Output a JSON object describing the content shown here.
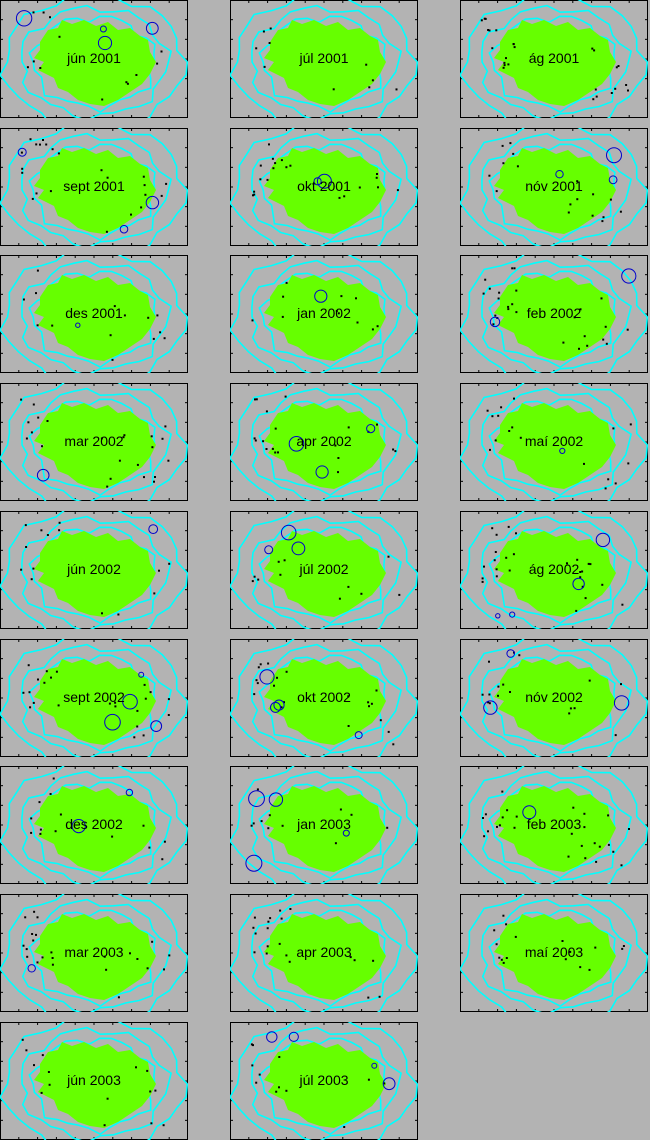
{
  "colors": {
    "background": "#b3b3b3",
    "land": "#66ff00",
    "contours": "#00ffff",
    "quake_dots": "#000000",
    "quake_circles": "#0000cc"
  },
  "panels": [
    {
      "label": "jún 2001"
    },
    {
      "label": "júl 2001"
    },
    {
      "label": "ág 2001"
    },
    {
      "label": "sept 2001"
    },
    {
      "label": "okt 2001"
    },
    {
      "label": "nóv 2001"
    },
    {
      "label": "des 2001"
    },
    {
      "label": "jan 2002"
    },
    {
      "label": "feb 2002"
    },
    {
      "label": "mar 2002"
    },
    {
      "label": "apr 2002"
    },
    {
      "label": "maí 2002"
    },
    {
      "label": "jún 2002"
    },
    {
      "label": "júl 2002"
    },
    {
      "label": "ág 2002"
    },
    {
      "label": "sept 2002"
    },
    {
      "label": "okt 2002"
    },
    {
      "label": "nóv 2002"
    },
    {
      "label": "des 2002"
    },
    {
      "label": "jan 2003"
    },
    {
      "label": "feb 2003"
    },
    {
      "label": "mar 2003"
    },
    {
      "label": "apr 2003"
    },
    {
      "label": "maí 2003"
    },
    {
      "label": "jún 2003"
    },
    {
      "label": "júl 2003"
    }
  ]
}
